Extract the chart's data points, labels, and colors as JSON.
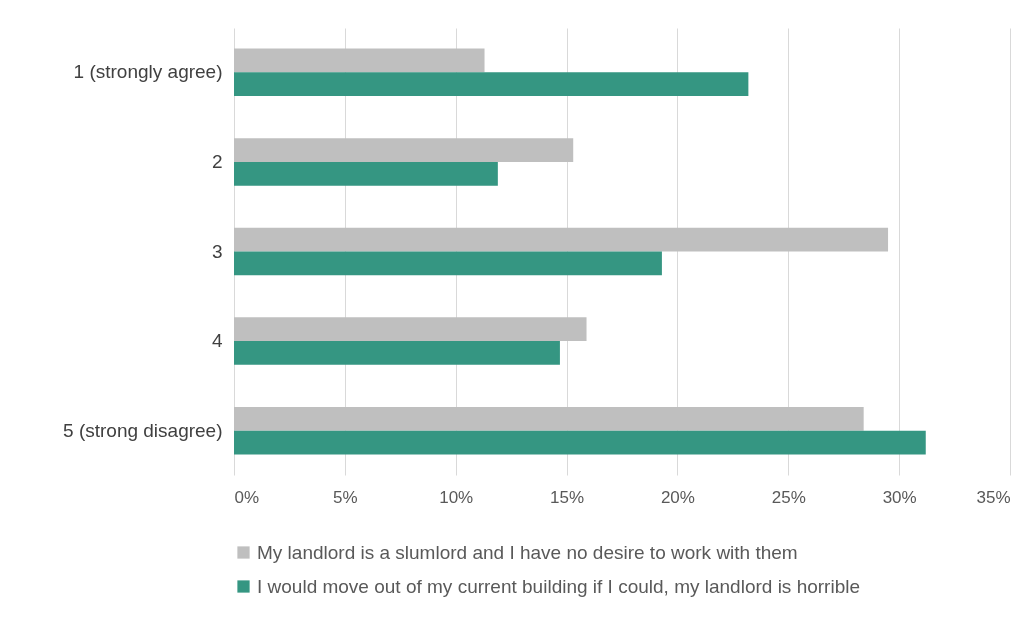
{
  "chart_data": {
    "type": "bar",
    "orientation": "horizontal",
    "categories": [
      "1 (strongly agree)",
      "2",
      "3",
      "4",
      "5 (strong disagree)"
    ],
    "series": [
      {
        "name": "My landlord is a slumlord and I have no desire to work with them",
        "color": "#bfbfbf",
        "values": [
          11.3,
          15.3,
          29.5,
          15.9,
          28.4
        ]
      },
      {
        "name": "I would move out of my current building if I could, my landlord is horrible",
        "color": "#359682",
        "values": [
          23.2,
          11.9,
          19.3,
          14.7,
          31.2
        ]
      }
    ],
    "xlim": [
      0,
      35
    ],
    "xticks": [
      {
        "value": 0,
        "label": "0%"
      },
      {
        "value": 5,
        "label": "5%"
      },
      {
        "value": 10,
        "label": "10%"
      },
      {
        "value": 15,
        "label": "15%"
      },
      {
        "value": 20,
        "label": "20%"
      },
      {
        "value": 25,
        "label": "25%"
      },
      {
        "value": 30,
        "label": "30%"
      },
      {
        "value": 35,
        "label": "35%"
      }
    ],
    "grid": "x",
    "legend": "bottom"
  }
}
